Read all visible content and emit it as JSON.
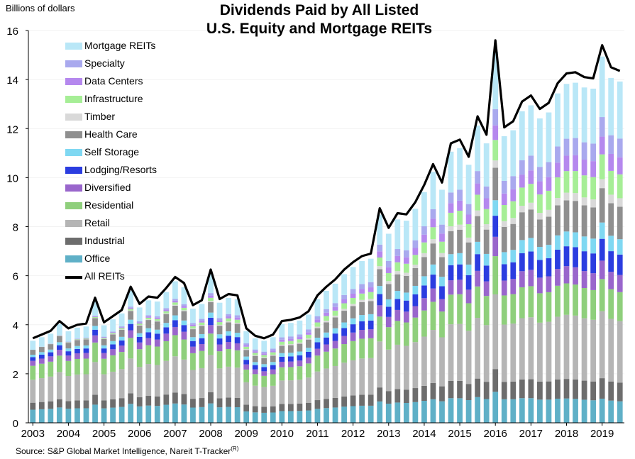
{
  "chart_data": {
    "type": "bar",
    "title": "Dividends Paid by All Listed",
    "subtitle": "U.S. Equity and Mortgage REITs",
    "ylabel": "Billions of dollars",
    "source": "Source: S&P Global Market Intelligence, Nareit T-Tracker",
    "source_mark": "(R)",
    "ylim": [
      0,
      16
    ],
    "yticks": [
      0,
      2,
      4,
      6,
      8,
      10,
      12,
      14,
      16
    ],
    "xticks": [
      "2003",
      "2004",
      "2005",
      "2006",
      "2007",
      "2008",
      "2009",
      "2010",
      "2011",
      "2012",
      "2013",
      "2014",
      "2015",
      "2016",
      "2017",
      "2018",
      "2019"
    ],
    "x_start": "2003Q1",
    "x_end": "2019Q3",
    "bar_stack_order_bottom_to_top": [
      "Office",
      "Industrial",
      "Retail",
      "Residential",
      "Diversified",
      "Lodging/Resorts",
      "Self Storage",
      "Health Care",
      "Timber",
      "Infrastructure",
      "Data Centers",
      "Specialty",
      "Mortgage REITs"
    ],
    "legend_order": [
      "Mortgage REITs",
      "Specialty",
      "Data Centers",
      "Infrastructure",
      "Timber",
      "Health Care",
      "Self Storage",
      "Lodging/Resorts",
      "Diversified",
      "Residential",
      "Retail",
      "Industrial",
      "Office"
    ],
    "line_series_name": "All REITs",
    "colors": {
      "Office": "#5fb0c7",
      "Industrial": "#6d6d6d",
      "Retail": "#b5b5b5",
      "Residential": "#8fcf7c",
      "Diversified": "#9966cc",
      "Lodging/Resorts": "#2b3de0",
      "Self Storage": "#7fd8f2",
      "Health Care": "#8f8f8f",
      "Timber": "#d9d9d9",
      "Infrastructure": "#a6ee96",
      "Data Centers": "#b588ee",
      "Specialty": "#a9a9ee",
      "Mortgage REITs": "#b9e7f7",
      "All REITs": "#000000"
    },
    "shares_early": [
      0.16,
      0.085,
      0.28,
      0.17,
      0.06,
      0.045,
      0.03,
      0.06,
      0.0,
      0.0,
      0.0,
      0.0,
      0.11
    ],
    "shares_late": [
      0.063,
      0.055,
      0.18,
      0.085,
      0.05,
      0.06,
      0.045,
      0.095,
      0.025,
      0.07,
      0.05,
      0.055,
      0.167
    ],
    "total_series": [
      3.45,
      3.6,
      3.75,
      4.15,
      3.85,
      4.0,
      4.05,
      5.1,
      4.1,
      4.35,
      4.6,
      5.55,
      4.85,
      5.15,
      5.1,
      5.5,
      5.95,
      5.7,
      4.8,
      5.0,
      6.25,
      5.05,
      5.25,
      5.2,
      3.85,
      3.55,
      3.45,
      3.6,
      4.15,
      4.2,
      4.3,
      4.55,
      5.2,
      5.55,
      5.85,
      6.25,
      6.55,
      6.8,
      6.9,
      8.75,
      7.95,
      8.55,
      8.5,
      9.0,
      9.7,
      10.55,
      9.8,
      11.4,
      11.55,
      10.85,
      12.5,
      11.75,
      15.6,
      12.05,
      12.3,
      13.1,
      13.35,
      12.8,
      13.05,
      13.85,
      14.25,
      14.3,
      14.1,
      14.05,
      15.4,
      14.5,
      14.35
    ]
  }
}
